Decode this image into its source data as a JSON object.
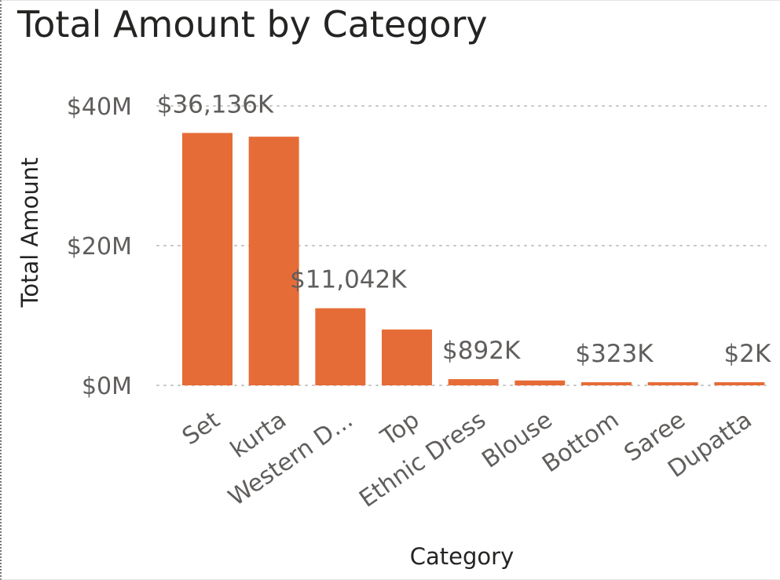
{
  "colors": {
    "bar": "#E66C37",
    "gridline": "#c8c6c4",
    "text_muted": "#605e5c",
    "text_dark": "#252423"
  },
  "chart_data": {
    "type": "bar",
    "title": "Total Amount by Category",
    "xlabel": "Category",
    "ylabel": "Total Amount",
    "categories": [
      "Set",
      "kurta",
      "Western D...",
      "Top",
      "Ethnic Dress",
      "Blouse",
      "Bottom",
      "Saree",
      "Dupatta"
    ],
    "values": [
      36136000,
      35600000,
      11042000,
      8000000,
      892000,
      700000,
      323000,
      250000,
      2000
    ],
    "data_labels": [
      "$36,136K",
      "",
      "$11,042K",
      "",
      "$892K",
      "",
      "$323K",
      "",
      "$2K"
    ],
    "yticks": [
      0,
      20000000,
      40000000
    ],
    "ytick_labels": [
      "$0M",
      "$20M",
      "$40M"
    ],
    "ylim": [
      0,
      40000000
    ],
    "grid": true,
    "legend": "none"
  }
}
